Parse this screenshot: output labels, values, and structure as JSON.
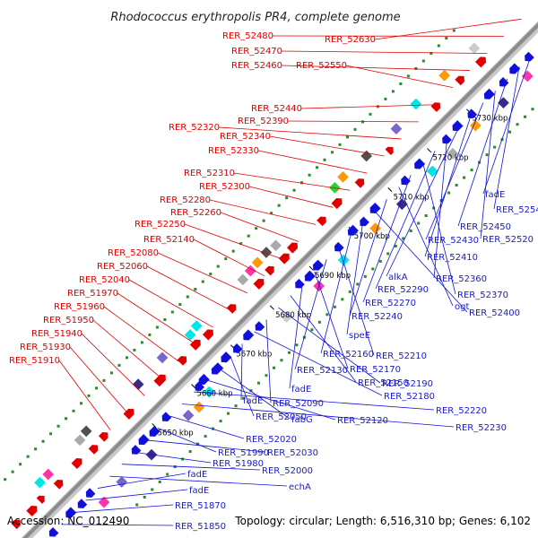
{
  "title": "Rhodococcus erythropolis PR4, complete genome",
  "accession": "Accession: NC_012490",
  "topology": "Topology: circular; Length: 6,516,310 bp; Genes: 6,102",
  "colors": {
    "forward": "#e00000",
    "reverse": "#1010dd",
    "axis": "#a0a0a0",
    "gc_dots": "#2a8a2a",
    "cog_palette": [
      "#00e5e5",
      "#ff33aa",
      "#aaaaaa",
      "#505050",
      "#3a2a88",
      "#7766cc",
      "#ff9900",
      "#33cc33",
      "#ffffff",
      "#cccccc"
    ]
  },
  "scale_ticks": [
    "5650 kbp",
    "5660 kbp",
    "5670 kbp",
    "5680 kbp",
    "5690 kbp",
    "5700 kbp",
    "5710 kbp",
    "5720 kbp",
    "5730 kbp"
  ],
  "forward_labels": [
    "RER_52630",
    "RER_52480",
    "RER_52470",
    "RER_52460",
    "RER_52550",
    "RER_52440",
    "RER_52390",
    "RER_52320",
    "RER_52340",
    "RER_52330",
    "RER_52310",
    "RER_52300",
    "RER_52280",
    "RER_52260",
    "RER_52250",
    "RER_52140",
    "RER_52080",
    "RER_52060",
    "RER_52040",
    "RER_51970",
    "RER_51960",
    "RER_51950",
    "RER_51940",
    "RER_51930",
    "RER_51910"
  ],
  "reverse_labels": [
    "fadE",
    "RER_52540",
    "RER_52450",
    "RER_52520",
    "RER_52430",
    "RER_52410",
    "alkA",
    "RER_52360",
    "RER_52290",
    "RER_52370",
    "RER_52270",
    "ogt",
    "RER_52240",
    "RER_52400",
    "speE",
    "RER_52160",
    "RER_52210",
    "RER_52130",
    "RER_52170",
    "fadE",
    "RER_52150",
    "RER_52190",
    "RER_52090",
    "RER_52180",
    "fadE",
    "RER_52050",
    "fabG",
    "RER_52120",
    "RER_52220",
    "RER_52230",
    "RER_52020",
    "RER_51990",
    "RER_52030",
    "RER_51980",
    "RER_52000",
    "echA",
    "fadE",
    "fadE",
    "RER_51870",
    "RER_51850"
  ]
}
